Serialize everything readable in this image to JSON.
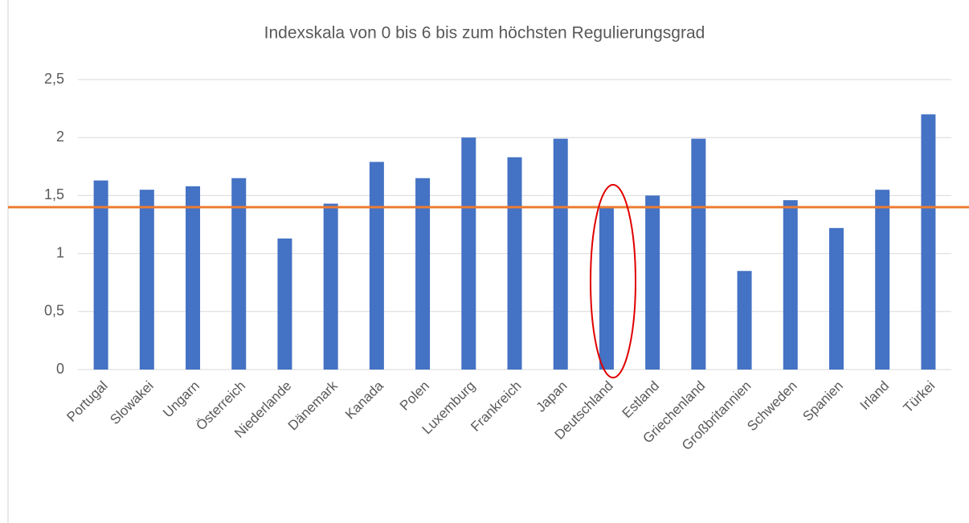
{
  "chart_data": {
    "type": "bar",
    "title": "Indexskala von 0 bis 6 bis zum höchsten Regulierungsgrad",
    "categories": [
      "Portugal",
      "Slowakei",
      "Ungarn",
      "Österreich",
      "Niederlande",
      "Dänemark",
      "Kanada",
      "Polen",
      "Luxemburg",
      "Frankreich",
      "Japan",
      "Deutschland",
      "Estland",
      "Griechenland",
      "Großbritannien",
      "Schweden",
      "Spanien",
      "Irland",
      "Türkei"
    ],
    "values": [
      1.63,
      1.55,
      1.58,
      1.65,
      1.13,
      1.43,
      1.79,
      1.65,
      2.0,
      1.83,
      1.99,
      1.4,
      1.5,
      1.99,
      0.85,
      1.46,
      1.22,
      1.55,
      2.2
    ],
    "color": "#4472c4",
    "reference_line": {
      "value": 1.4,
      "color": "#ed7d31"
    },
    "ylim": [
      0,
      2.5
    ],
    "yticks": [
      0,
      {
        "value": 0.5,
        "label": "0,5"
      },
      1,
      {
        "value": 1.5,
        "label": "1,5"
      },
      2,
      {
        "value": 2.5,
        "label": "2,5"
      }
    ],
    "grid": true
  }
}
